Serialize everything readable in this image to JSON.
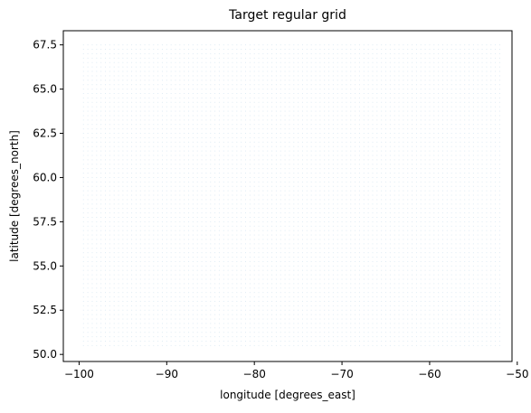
{
  "chart_data": {
    "type": "scatter",
    "title": "Target regular grid",
    "xlabel": "longitude [degrees_east]",
    "ylabel": "latitude [degrees_north]",
    "xlim": [
      -101.8,
      -50.6
    ],
    "ylim": [
      49.6,
      68.3
    ],
    "xticks": [
      -100,
      -90,
      -80,
      -70,
      -60,
      -50
    ],
    "xtick_labels": [
      "−100",
      "−90",
      "−80",
      "−70",
      "−60",
      "−50"
    ],
    "yticks": [
      50.0,
      52.5,
      55.0,
      57.5,
      60.0,
      62.5,
      65.0,
      67.5
    ],
    "ytick_labels": [
      "50.0",
      "52.5",
      "55.0",
      "57.5",
      "60.0",
      "62.5",
      "65.0",
      "67.5"
    ],
    "grid": false,
    "legend": "none",
    "point_color": "#1f77b4",
    "grid_points": {
      "x_start": -99.5,
      "x_end": -52.0,
      "x_step": 0.5,
      "y_start": 50.5,
      "y_end": 67.5,
      "y_step": 0.25
    }
  }
}
